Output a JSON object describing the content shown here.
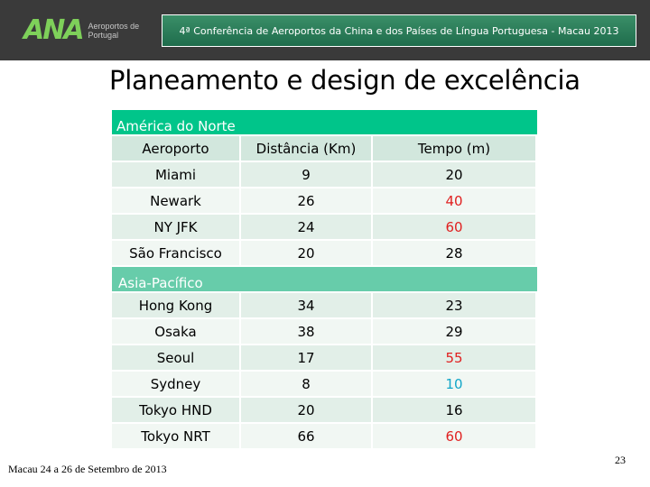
{
  "header": {
    "logo_mark": "ANA",
    "logo_text": "Aeroportos de Portugal",
    "banner": "4ª Conferência de Aeroportos da China e dos Países de Língua Portuguesa - Macau 2013"
  },
  "title": "Planeamento e design de excelência",
  "table": {
    "columns": [
      "Aeroporto",
      "Distância (Km)",
      "Tempo (m)"
    ],
    "sections": [
      {
        "name": "América do Norte",
        "rows": [
          {
            "airport": "Miami",
            "distance": "9",
            "time": "20",
            "time_color": "#000000"
          },
          {
            "airport": "Newark",
            "distance": "26",
            "time": "40",
            "time_color": "#e02020"
          },
          {
            "airport": "NY JFK",
            "distance": "24",
            "time": "60",
            "time_color": "#e02020"
          },
          {
            "airport": "São Francisco",
            "distance": "20",
            "time": "28",
            "time_color": "#000000"
          }
        ]
      },
      {
        "name": "Asia-Pacífico",
        "rows": [
          {
            "airport": "Hong Kong",
            "distance": "34",
            "time": "23",
            "time_color": "#000000"
          },
          {
            "airport": "Osaka",
            "distance": "38",
            "time": "29",
            "time_color": "#000000"
          },
          {
            "airport": "Seoul",
            "distance": "17",
            "time": "55",
            "time_color": "#e02020"
          },
          {
            "airport": "Sydney",
            "distance": "8",
            "time": "10",
            "time_color": "#12a6c8"
          },
          {
            "airport": "Tokyo HND",
            "distance": "20",
            "time": "16",
            "time_color": "#000000"
          },
          {
            "airport": "Tokyo NRT",
            "distance": "66",
            "time": "60",
            "time_color": "#e02020"
          }
        ]
      }
    ]
  },
  "footer": {
    "left": "Macau 24 a 26 de Setembro de 2013",
    "page_number": "23"
  }
}
